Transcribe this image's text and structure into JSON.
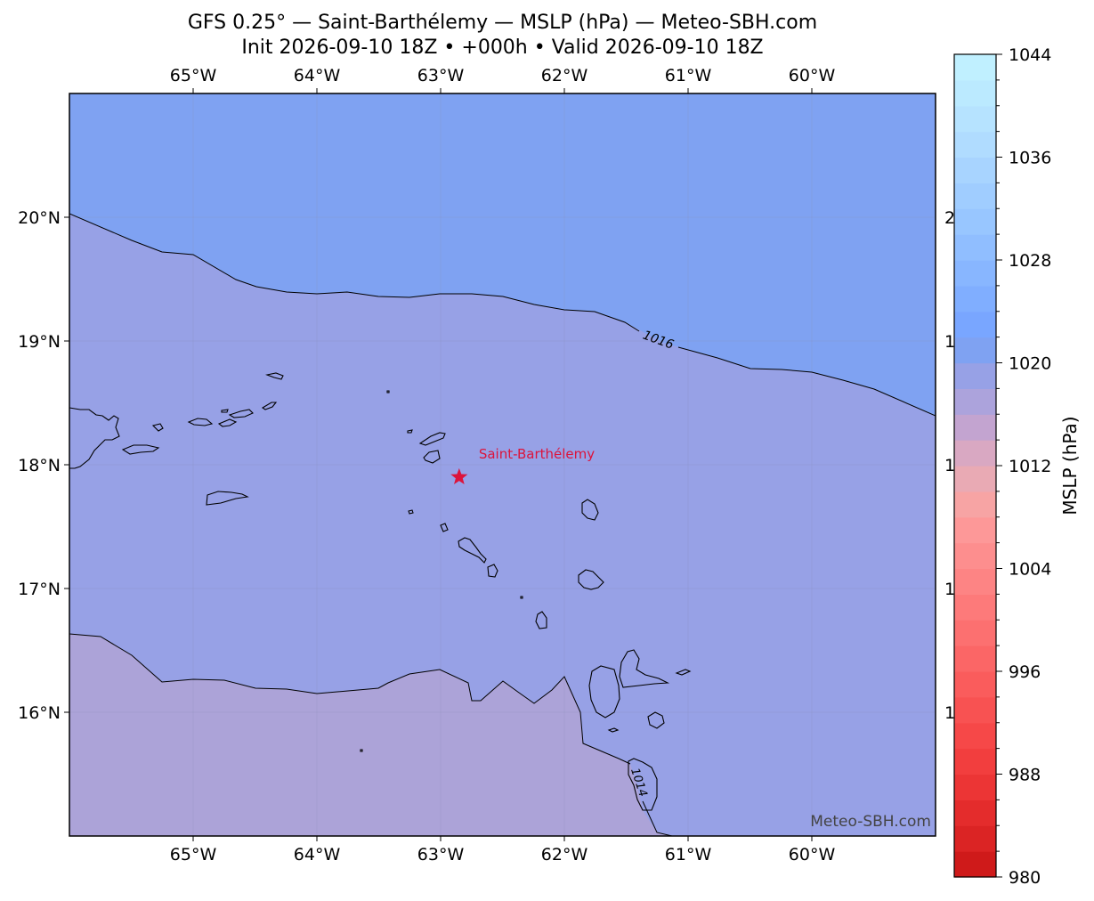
{
  "header": {
    "title_line1": "GFS 0.25° — Saint-Barthélemy — MSLP (hPa) — Meteo-SBH.com",
    "title_line2": "Init 2026-09-10 18Z • +000h • Valid 2026-09-10 18Z"
  },
  "map": {
    "extent": {
      "lon_min": -66.0,
      "lon_max": -59.0,
      "lat_min": 15.0,
      "lat_max": 21.0
    },
    "lon_ticks": [
      {
        "value": -65,
        "label": "65°W"
      },
      {
        "value": -64,
        "label": "64°W"
      },
      {
        "value": -63,
        "label": "63°W"
      },
      {
        "value": -62,
        "label": "62°W"
      },
      {
        "value": -61,
        "label": "61°W"
      },
      {
        "value": -60,
        "label": "60°W"
      }
    ],
    "lat_ticks": [
      {
        "value": 20,
        "label": "20°N"
      },
      {
        "value": 19,
        "label": "19°N"
      },
      {
        "value": 18,
        "label": "18°N"
      },
      {
        "value": 17,
        "label": "17°N"
      },
      {
        "value": 16,
        "label": "16°N"
      }
    ],
    "right_lat_partial_labels": [
      "2",
      "1",
      "1",
      "1",
      "1"
    ],
    "marker": {
      "name": "Saint-Barthélemy",
      "lon": -62.85,
      "lat": 17.9,
      "color": "#dc143c"
    },
    "contours": [
      {
        "level": 1016,
        "label": "1016"
      },
      {
        "level": 1014,
        "label": "1014"
      }
    ],
    "fill_colors": {
      "above_1016": "#7fa2f2",
      "between_1014_1016": "#97a1e6",
      "below_1014": "#aca3d8"
    },
    "watermark": "Meteo-SBH.com"
  },
  "colorbar": {
    "label": "MSLP (hPa)",
    "min": 980,
    "max": 1044,
    "tick_labels": [
      "1044",
      "1036",
      "1028",
      "1020",
      "1012",
      "1004",
      "996",
      "988",
      "980"
    ],
    "colors_low_to_high": [
      "#cf1a1a",
      "#db2424",
      "#e42c2c",
      "#ec3535",
      "#f23e3e",
      "#f64848",
      "#f85252",
      "#fa5c5c",
      "#fb6666",
      "#fc7070",
      "#fd7a7a",
      "#fd8484",
      "#fd8e8e",
      "#fd9898",
      "#f7a4a4",
      "#e9aab4",
      "#d9a8c2",
      "#c3a4d0",
      "#aca3dc",
      "#97a1e6",
      "#7fa2f2",
      "#79a6ff",
      "#80aeff",
      "#88b6ff",
      "#90beff",
      "#98c6ff",
      "#a0cdff",
      "#a8d4ff",
      "#b0dcff",
      "#b6e3ff",
      "#bbeaff",
      "#c0f0ff"
    ]
  }
}
